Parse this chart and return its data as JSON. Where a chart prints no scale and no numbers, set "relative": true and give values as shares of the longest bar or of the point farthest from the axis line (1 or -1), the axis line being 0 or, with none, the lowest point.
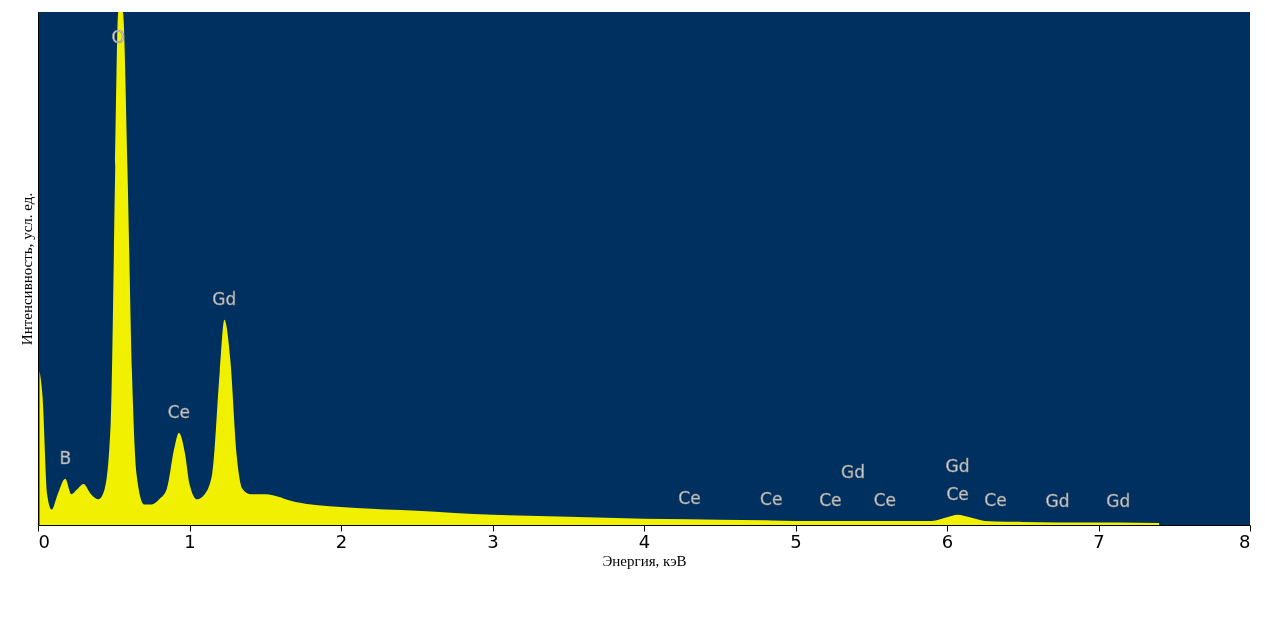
{
  "chart_data": {
    "type": "area",
    "relative": true,
    "xlabel": "Энергия, кэВ",
    "ylabel": "Интенсивность, усл. ед.",
    "xlim": [
      0,
      8
    ],
    "xticks": [
      0,
      1,
      2,
      3,
      4,
      5,
      6,
      7,
      8
    ],
    "grid": false,
    "x": [
      0.01,
      0.03,
      0.06,
      0.09,
      0.13,
      0.18,
      0.22,
      0.26,
      0.3,
      0.35,
      0.4,
      0.44,
      0.48,
      0.51,
      0.53,
      0.56,
      0.59,
      0.62,
      0.65,
      0.7,
      0.75,
      0.8,
      0.85,
      0.9,
      0.93,
      0.97,
      1.0,
      1.05,
      1.1,
      1.15,
      1.2,
      1.23,
      1.27,
      1.31,
      1.35,
      1.4,
      1.5,
      1.7,
      2.0,
      2.5,
      3.0,
      3.5,
      4.0,
      4.3,
      4.5,
      4.84,
      5.0,
      5.23,
      5.38,
      5.5,
      5.59,
      5.9,
      6.0,
      6.07,
      6.15,
      6.25,
      6.32,
      6.5,
      6.73,
      7.0,
      7.13,
      7.4
    ],
    "series": [
      {
        "color": "#f0f000",
        "values": [
          0.3,
          0.25,
          0.06,
          0.03,
          0.06,
          0.09,
          0.06,
          0.07,
          0.08,
          0.06,
          0.05,
          0.07,
          0.2,
          0.7,
          1.0,
          1.0,
          0.7,
          0.3,
          0.1,
          0.04,
          0.04,
          0.05,
          0.07,
          0.15,
          0.18,
          0.14,
          0.08,
          0.05,
          0.06,
          0.1,
          0.3,
          0.4,
          0.32,
          0.14,
          0.07,
          0.06,
          0.06,
          0.045,
          0.035,
          0.028,
          0.02,
          0.016,
          0.012,
          0.011,
          0.01,
          0.009,
          0.008,
          0.008,
          0.008,
          0.008,
          0.008,
          0.008,
          0.015,
          0.02,
          0.015,
          0.008,
          0.007,
          0.006,
          0.005,
          0.005,
          0.005,
          0.004
        ]
      }
    ],
    "annotations": [
      {
        "text": "B",
        "x": 0.18,
        "y": 0.09
      },
      {
        "text": "O",
        "x": 0.53,
        "y": 1.0
      },
      {
        "text": "Ce",
        "x": 0.93,
        "y": 0.18
      },
      {
        "text": "Gd",
        "x": 1.23,
        "y": 0.4
      },
      {
        "text": "Ce",
        "x": 4.3,
        "y": 0.011
      },
      {
        "text": "Ce",
        "x": 4.84,
        "y": 0.009
      },
      {
        "text": "Ce",
        "x": 5.23,
        "y": 0.008
      },
      {
        "text": "Gd",
        "x": 5.38,
        "y": 0.008
      },
      {
        "text": "Ce",
        "x": 5.59,
        "y": 0.008
      },
      {
        "text": "Ce",
        "x": 6.07,
        "y": 0.02
      },
      {
        "text": "Gd",
        "x": 6.07,
        "y": 0.02
      },
      {
        "text": "Ce",
        "x": 6.32,
        "y": 0.007
      },
      {
        "text": "Gd",
        "x": 6.73,
        "y": 0.005
      },
      {
        "text": "Gd",
        "x": 7.13,
        "y": 0.005
      }
    ]
  }
}
